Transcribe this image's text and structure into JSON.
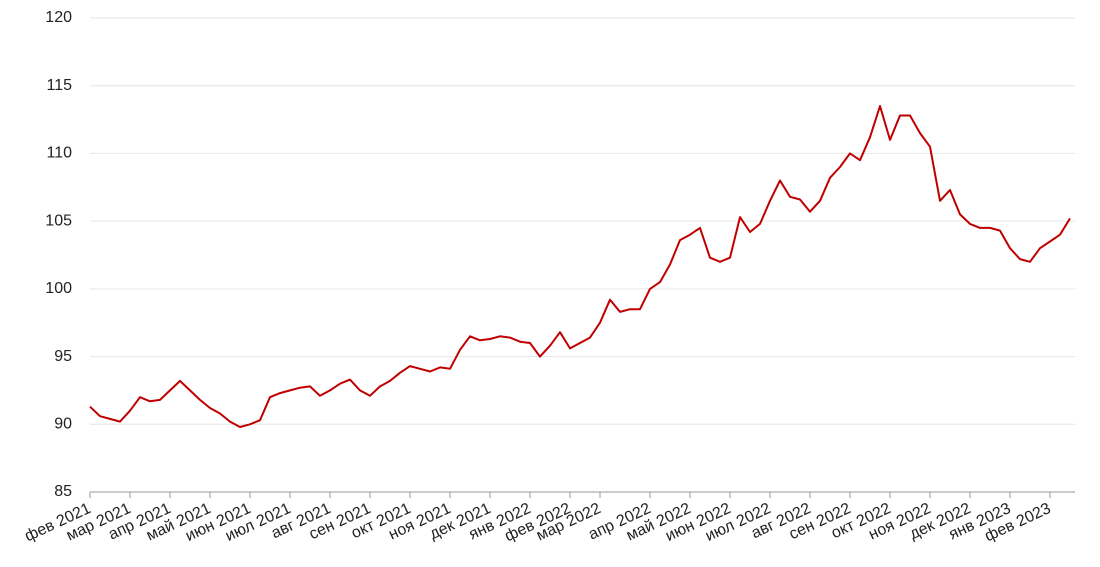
{
  "chart_data": {
    "type": "line",
    "categories": [
      "фев 2021",
      null,
      null,
      null,
      "мар 2021",
      null,
      null,
      null,
      "апр 2021",
      null,
      null,
      null,
      "май 2021",
      null,
      null,
      null,
      "июн 2021",
      null,
      null,
      null,
      "июл 2021",
      null,
      null,
      null,
      "авг 2021",
      null,
      null,
      null,
      "сен 2021",
      null,
      null,
      null,
      "окт 2021",
      null,
      null,
      null,
      "ноя 2021",
      null,
      null,
      null,
      "дек 2021",
      null,
      null,
      null,
      "янв 2022",
      null,
      null,
      null,
      "фев 2022",
      null,
      null,
      "мар 2022",
      null,
      null,
      null,
      null,
      "апр 2022",
      null,
      null,
      null,
      "май 2022",
      null,
      null,
      null,
      "июн 2022",
      null,
      null,
      null,
      "июл 2022",
      null,
      null,
      null,
      "авг 2022",
      null,
      null,
      null,
      "сен 2022",
      null,
      null,
      null,
      "окт 2022",
      null,
      null,
      null,
      "ноя 2022",
      null,
      null,
      null,
      "дек 2022",
      null,
      null,
      null,
      "янв 2023",
      null,
      null,
      null,
      "фев 2023",
      null,
      null
    ],
    "series": [
      {
        "color": "#c00000",
        "values": [
          91.3,
          90.6,
          90.4,
          90.2,
          91.0,
          92.0,
          91.7,
          91.8,
          92.5,
          93.2,
          92.5,
          91.8,
          91.2,
          90.8,
          90.2,
          89.8,
          90.0,
          90.3,
          92.0,
          92.3,
          92.5,
          92.7,
          92.8,
          92.1,
          92.5,
          93.0,
          93.3,
          92.5,
          92.1,
          92.8,
          93.2,
          93.8,
          94.3,
          94.1,
          93.9,
          94.2,
          94.1,
          95.5,
          96.5,
          96.2,
          96.3,
          96.5,
          96.4,
          96.1,
          96.0,
          95.0,
          95.8,
          96.8,
          95.6,
          96.0,
          96.4,
          97.5,
          99.2,
          98.3,
          98.5,
          98.5,
          100.0,
          100.5,
          101.8,
          103.6,
          104.0,
          104.5,
          102.3,
          102.0,
          102.3,
          105.3,
          104.2,
          104.8,
          106.5,
          108.0,
          106.8,
          106.6,
          105.7,
          106.5,
          108.2,
          109.0,
          110.0,
          109.5,
          111.2,
          113.5,
          111.0,
          112.8,
          112.8,
          111.5,
          110.5,
          106.5,
          107.3,
          105.5,
          104.8,
          104.5,
          104.5,
          104.3,
          103.0,
          102.2,
          102.0,
          103.0,
          103.5,
          104.0,
          105.2
        ]
      }
    ],
    "ylim": [
      85,
      120
    ],
    "yticks": [
      85,
      90,
      95,
      100,
      105,
      110,
      115,
      120
    ],
    "grid": true
  }
}
